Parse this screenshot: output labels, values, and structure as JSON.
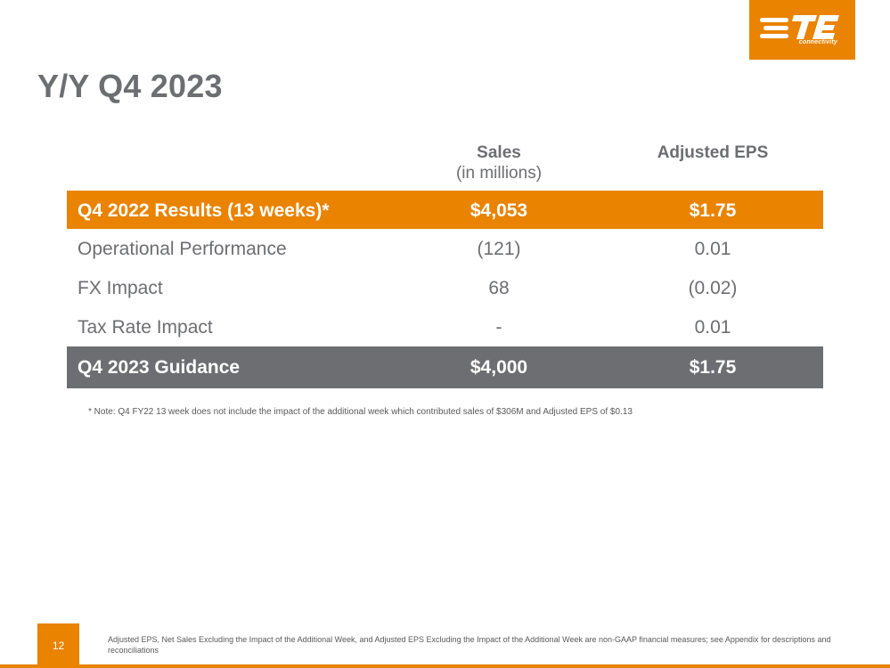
{
  "brand": {
    "logo_text": "TE",
    "logo_subtext": "connectivity",
    "accent_color": "#e98300",
    "dark_gray": "#6d6e71"
  },
  "slide": {
    "title": "Y/Y Q4 2023",
    "page_number": "12"
  },
  "table": {
    "headers": {
      "sales": "Sales",
      "sales_sub": "(in millions)",
      "eps": "Adjusted EPS"
    },
    "header_row": {
      "label": "Q4 2022 Results (13 weeks)*",
      "sales": "$4,053",
      "eps": "$1.75"
    },
    "rows": [
      {
        "label": "Operational Performance",
        "sales": "(121)",
        "eps": "0.01"
      },
      {
        "label": "FX Impact",
        "sales": "68",
        "eps": "(0.02)"
      },
      {
        "label": "Tax Rate Impact",
        "sales": "-",
        "eps": "0.01"
      }
    ],
    "footer_row": {
      "label": "Q4 2023 Guidance",
      "sales": "$4,000",
      "eps": "$1.75"
    }
  },
  "note": "* Note: Q4 FY22 13 week does not include the impact of the additional week which contributed sales of $306M and Adjusted EPS of $0.13",
  "footer": {
    "disclaimer": "Adjusted EPS, Net Sales Excluding the Impact of the Additional Week, and Adjusted EPS Excluding the Impact of the Additional Week are non-GAAP financial measures; see Appendix for descriptions and reconciliations"
  }
}
